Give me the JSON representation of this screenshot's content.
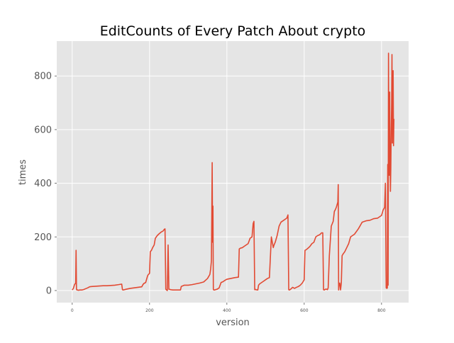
{
  "chart_data": {
    "type": "line",
    "title": "EditCounts of Every Patch About crypto",
    "xlabel": "version",
    "ylabel": "times",
    "xlim": [
      -40,
      870
    ],
    "ylim": [
      -45,
      930
    ],
    "xticks": [
      0,
      200,
      400,
      600,
      800
    ],
    "yticks": [
      0,
      200,
      400,
      600,
      800
    ],
    "grid": true,
    "background": "#e5e5e5",
    "line_color": "#e24a33",
    "series": [
      {
        "x": [
          0,
          3,
          6,
          9,
          10,
          11,
          12,
          14,
          16,
          20,
          25,
          30,
          35,
          40,
          45,
          50,
          60,
          70,
          80,
          90,
          100,
          110,
          120,
          128,
          130,
          132,
          140,
          150,
          160,
          170,
          180,
          182,
          185,
          190,
          195,
          197,
          199,
          200,
          202,
          205,
          208,
          212,
          215,
          220,
          225,
          230,
          235,
          238,
          240,
          242,
          244,
          246,
          248,
          250,
          255,
          260,
          280,
          282,
          290,
          300,
          310,
          320,
          330,
          340,
          350,
          356,
          358,
          360,
          361,
          362,
          363,
          364,
          365,
          366,
          367,
          368,
          370,
          375,
          380,
          385,
          390,
          395,
          400,
          410,
          420,
          430,
          432,
          435,
          440,
          445,
          450,
          455,
          460,
          465,
          468,
          470,
          472,
          473,
          475,
          480,
          482,
          485,
          488,
          490,
          495,
          500,
          505,
          510,
          515,
          520,
          522,
          525,
          530,
          535,
          540,
          545,
          550,
          555,
          558,
          560,
          562,
          565,
          570,
          575,
          580,
          585,
          590,
          595,
          600,
          602,
          605,
          610,
          615,
          620,
          625,
          630,
          635,
          640,
          645,
          648,
          650,
          652,
          655,
          658,
          660,
          662,
          665,
          670,
          675,
          678,
          680,
          683,
          685,
          687,
          688,
          689,
          690,
          692,
          694,
          696,
          698,
          700,
          705,
          710,
          715,
          720,
          730,
          740,
          750,
          760,
          770,
          780,
          790,
          800,
          804,
          806,
          808,
          810,
          812,
          814,
          815,
          816,
          817,
          818,
          819,
          820,
          821,
          822,
          823,
          824,
          825,
          826,
          827,
          828,
          829,
          830,
          831,
          832
        ],
        "y": [
          2,
          8,
          22,
          28,
          150,
          5,
          2,
          2,
          1,
          2,
          2,
          4,
          7,
          10,
          14,
          15,
          16,
          17,
          18,
          18,
          19,
          20,
          22,
          24,
          3,
          2,
          5,
          8,
          10,
          12,
          14,
          20,
          26,
          30,
          55,
          60,
          62,
          65,
          145,
          150,
          160,
          170,
          195,
          205,
          212,
          218,
          222,
          228,
          230,
          5,
          2,
          0,
          170,
          5,
          3,
          2,
          2,
          15,
          20,
          20,
          22,
          25,
          28,
          32,
          45,
          60,
          80,
          110,
          290,
          477,
          180,
          315,
          5,
          2,
          2,
          2,
          3,
          5,
          10,
          30,
          33,
          38,
          42,
          45,
          48,
          50,
          155,
          158,
          160,
          165,
          170,
          175,
          195,
          200,
          250,
          258,
          3,
          5,
          3,
          2,
          20,
          25,
          28,
          30,
          35,
          40,
          45,
          48,
          200,
          160,
          170,
          180,
          205,
          240,
          255,
          260,
          265,
          270,
          282,
          3,
          2,
          5,
          12,
          8,
          12,
          15,
          20,
          28,
          40,
          150,
          152,
          158,
          165,
          175,
          180,
          200,
          205,
          208,
          215,
          215,
          3,
          2,
          5,
          5,
          3,
          10,
          130,
          240,
          258,
          295,
          300,
          310,
          320,
          330,
          395,
          2,
          25,
          28,
          2,
          28,
          130,
          135,
          145,
          160,
          175,
          200,
          210,
          230,
          255,
          260,
          262,
          268,
          270,
          280,
          300,
          305,
          310,
          400,
          10,
          8,
          10,
          470,
          20,
          885,
          520,
          430,
          740,
          480,
          370,
          455,
          590,
          690,
          880,
          550,
          660,
          820,
          540,
          640
        ],
        "color": "#e24a33"
      }
    ]
  }
}
